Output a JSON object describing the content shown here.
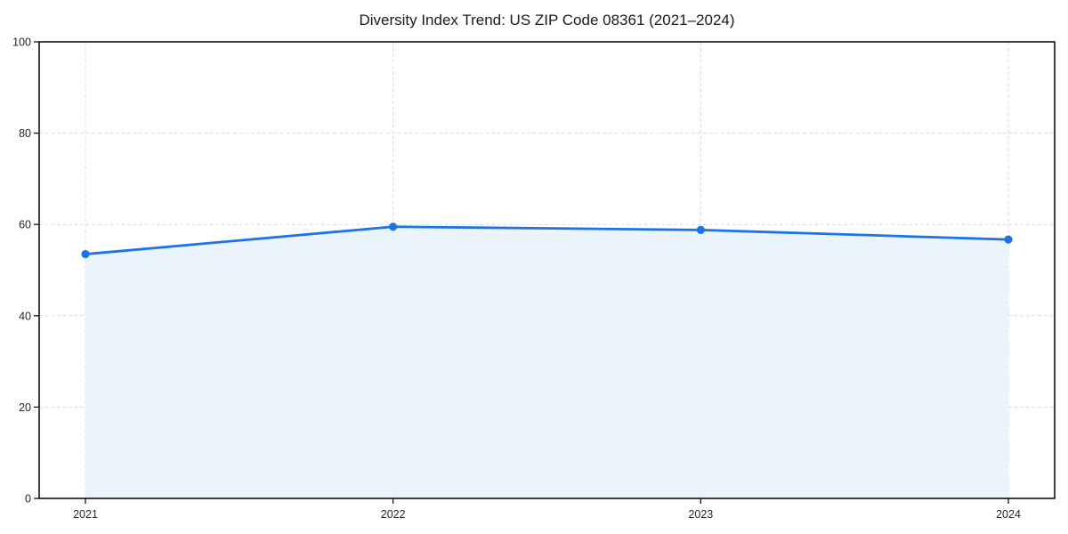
{
  "page": {
    "background_color": "#ffffff"
  },
  "chart_data": {
    "type": "area",
    "title": "Diversity Index Trend: US ZIP Code 08361 (2021–2024)",
    "categories": [
      "2021",
      "2022",
      "2023",
      "2024"
    ],
    "values": [
      53.5,
      59.5,
      58.8,
      56.7
    ],
    "xlabel": "",
    "ylabel": "",
    "ylim": [
      0,
      100
    ],
    "yticks": [
      0,
      20,
      40,
      60,
      80,
      100
    ],
    "grid": "dashed",
    "legend": "none",
    "line_color": "#1a73e8",
    "fill_color": "#e8f1fd",
    "marker": "circle"
  }
}
